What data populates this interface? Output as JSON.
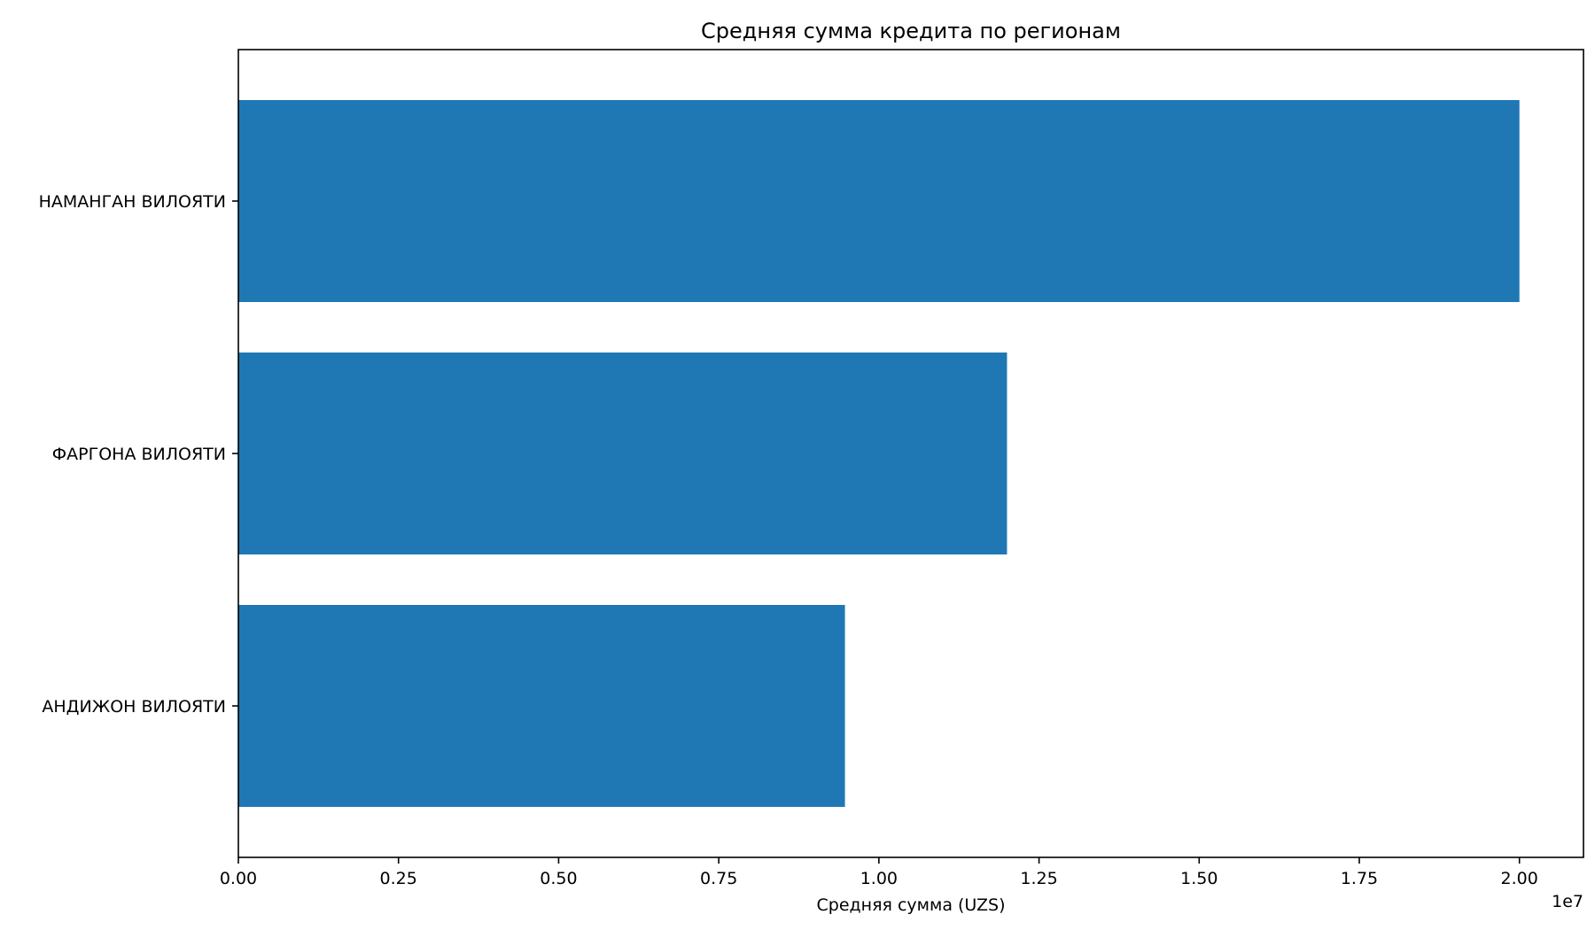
{
  "chart_data": {
    "type": "bar",
    "orientation": "horizontal",
    "title": "Средняя сумма кредита по регионам",
    "xlabel": "Средняя сумма (UZS)",
    "ylabel": "",
    "x_offset_label": "1e7",
    "categories": [
      "НАМАНГАН ВИЛОЯТИ",
      "ФАРГОНА ВИЛОЯТИ",
      "АНДИЖОН ВИЛОЯТИ"
    ],
    "values": [
      20000000,
      12000000,
      9470000
    ],
    "xlim": [
      0,
      21000000
    ],
    "x_ticks": [
      0,
      2500000,
      5000000,
      7500000,
      10000000,
      12500000,
      15000000,
      17500000,
      20000000
    ],
    "x_tick_labels": [
      "0.00",
      "0.25",
      "0.50",
      "0.75",
      "1.00",
      "1.25",
      "1.50",
      "1.75",
      "2.00"
    ],
    "grid": false,
    "bar_color": "#1f77b4"
  }
}
